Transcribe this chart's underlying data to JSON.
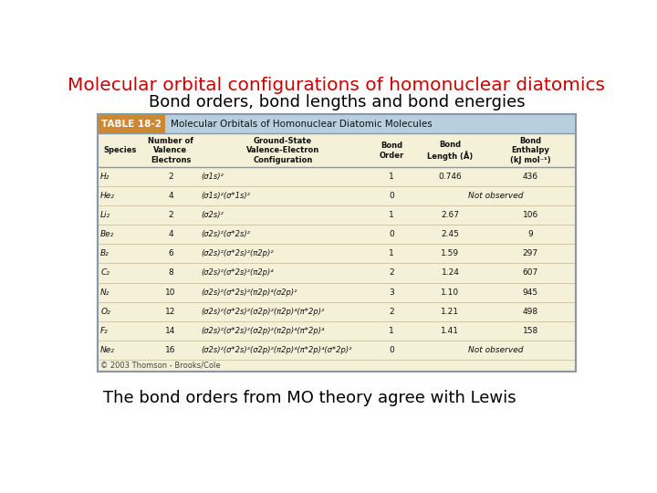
{
  "title": "Molecular orbital configurations of homonuclear diatomics",
  "subtitle": "Bond orders, bond lengths and bond energies",
  "title_color": "#cc0000",
  "subtitle_color": "#000000",
  "footer": "The bond orders from MO theory agree with Lewis",
  "table_title": "TABLE 18-2",
  "table_header": "Molecular Orbitals of Homonuclear Diatomic Molecules",
  "col_headers": [
    "Species",
    "Number of\nValence\nElectrons",
    "Ground-State\nValence-Electron\nConfiguration",
    "Bond\nOrder",
    "Bond\nLength (Å)",
    "Bond\nEnthalpy\n(kJ mol⁻¹)"
  ],
  "rows": [
    [
      "H₂",
      "2",
      "(σ1s)²",
      "1",
      "0.746",
      "436"
    ],
    [
      "He₂",
      "4",
      "(σ1s)²(σ*1s)²",
      "0",
      "",
      "Not observed"
    ],
    [
      "Li₂",
      "2",
      "(σ2s)²",
      "1",
      "2.67",
      "106"
    ],
    [
      "Be₂",
      "4",
      "(σ2s)²(σ*2s)²",
      "0",
      "2.45",
      "9"
    ],
    [
      "B₂",
      "6",
      "(σ2s)²(σ*2s)²(π2p)²",
      "1",
      "1.59",
      "297"
    ],
    [
      "C₂",
      "8",
      "(σ2s)²(σ*2s)²(π2p)⁴",
      "2",
      "1.24",
      "607"
    ],
    [
      "N₂",
      "10",
      "(σ2s)²(σ*2s)²(π2p)⁴(σ2p)²",
      "3",
      "1.10",
      "945"
    ],
    [
      "O₂",
      "12",
      "(σ2s)²(σ*2s)²(σ2p)²(π2p)⁴(π*2p)²",
      "2",
      "1.21",
      "498"
    ],
    [
      "F₂",
      "14",
      "(σ2s)²(σ*2s)²(σ2p)²(π2p)⁴(π*2p)⁴",
      "1",
      "1.41",
      "158"
    ],
    [
      "Ne₂",
      "16",
      "(σ2s)²(σ*2s)²(σ2p)²(π2p)⁴(π*2p)⁴(σ*2p)²",
      "0",
      "",
      "Not observed"
    ]
  ],
  "copyright": "© 2003 Thomson - Brooks/Cole",
  "bg_color": "#ffffff",
  "table_header_bg": "#b8cfe0",
  "table_label_bg": "#cc8833",
  "table_body_bg": "#f5f0d8",
  "table_border": "#8899aa",
  "row_divider": "#c8b890"
}
